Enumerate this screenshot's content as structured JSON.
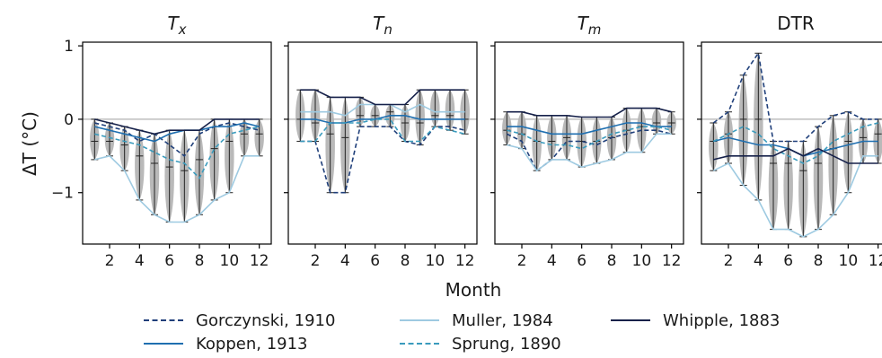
{
  "figure": {
    "xlabel": "Month",
    "ylabel": "ΔT (°C)"
  },
  "legend": [
    {
      "label": "Gorczynski, 1910",
      "color": "#1f3f7a",
      "style": "dashed"
    },
    {
      "label": "Koppen, 1913",
      "color": "#1f6fb0",
      "style": "solid"
    },
    {
      "label": "Muller, 1984",
      "color": "#9ecae1",
      "style": "solid"
    },
    {
      "label": "Sprung, 1890",
      "color": "#3a9bbd",
      "style": "dashed"
    },
    {
      "label": "Whipple, 1883",
      "color": "#16214a",
      "style": "solid"
    }
  ],
  "colors": {
    "violin": "#b5b5b5",
    "zero_line": "#b0b0b0",
    "axis": "#000000"
  },
  "chart_data": [
    {
      "type": "line",
      "title_main": "T",
      "title_sub": "x",
      "x": [
        1,
        2,
        3,
        4,
        5,
        6,
        7,
        8,
        9,
        10,
        11,
        12
      ],
      "xticks": [
        2,
        4,
        6,
        8,
        10,
        12
      ],
      "ylim": [
        -1.7,
        1.05
      ],
      "yticks": [
        1,
        0,
        -1
      ],
      "series": [
        {
          "name": "Gorczynski, 1910",
          "values": [
            -0.05,
            -0.1,
            -0.15,
            -0.3,
            -0.2,
            -0.35,
            -0.5,
            -0.2,
            -0.1,
            -0.05,
            -0.1,
            -0.15
          ]
        },
        {
          "name": "Koppen, 1913",
          "values": [
            -0.1,
            -0.15,
            -0.2,
            -0.25,
            -0.3,
            -0.2,
            -0.15,
            -0.15,
            -0.1,
            -0.1,
            -0.05,
            -0.1
          ]
        },
        {
          "name": "Muller, 1984",
          "values": [
            -0.55,
            -0.5,
            -0.7,
            -1.1,
            -1.3,
            -1.4,
            -1.4,
            -1.3,
            -1.1,
            -1.0,
            -0.5,
            -0.5
          ]
        },
        {
          "name": "Sprung, 1890",
          "values": [
            -0.2,
            -0.25,
            -0.3,
            -0.35,
            -0.45,
            -0.55,
            -0.6,
            -0.8,
            -0.4,
            -0.2,
            -0.15,
            -0.1
          ]
        },
        {
          "name": "Whipple, 1883",
          "values": [
            0.0,
            -0.05,
            -0.1,
            -0.15,
            -0.2,
            -0.15,
            -0.15,
            -0.15,
            0.0,
            0.0,
            0.0,
            0.0
          ]
        }
      ],
      "violin_medians": [
        -0.3,
        -0.3,
        -0.35,
        -0.5,
        -0.6,
        -0.65,
        -0.7,
        -0.55,
        -0.4,
        -0.3,
        -0.2,
        -0.2
      ]
    },
    {
      "type": "line",
      "title_main": "T",
      "title_sub": "n",
      "x": [
        1,
        2,
        3,
        4,
        5,
        6,
        7,
        8,
        9,
        10,
        11,
        12
      ],
      "xticks": [
        2,
        4,
        6,
        8,
        10,
        12
      ],
      "ylim": [
        -1.7,
        1.05
      ],
      "yticks": [
        1,
        0,
        -1
      ],
      "series": [
        {
          "name": "Gorczynski, 1910",
          "values": [
            -0.3,
            -0.3,
            -1.0,
            -1.0,
            -0.1,
            -0.1,
            -0.1,
            -0.3,
            -0.35,
            -0.1,
            -0.1,
            -0.15
          ]
        },
        {
          "name": "Koppen, 1913",
          "values": [
            0.0,
            0.0,
            -0.05,
            -0.05,
            0.0,
            0.0,
            0.05,
            0.05,
            0.0,
            0.0,
            0.0,
            0.0
          ]
        },
        {
          "name": "Muller, 1984",
          "values": [
            0.1,
            0.1,
            0.1,
            0.05,
            0.2,
            0.2,
            0.2,
            0.1,
            0.2,
            0.1,
            0.1,
            0.1
          ]
        },
        {
          "name": "Sprung, 1890",
          "values": [
            -0.3,
            -0.3,
            -0.05,
            -0.05,
            -0.05,
            0.0,
            0.0,
            -0.3,
            -0.3,
            -0.1,
            -0.15,
            -0.2
          ]
        },
        {
          "name": "Whipple, 1883",
          "values": [
            0.4,
            0.4,
            0.3,
            0.3,
            0.3,
            0.2,
            0.2,
            0.2,
            0.4,
            0.4,
            0.4,
            0.4
          ]
        }
      ],
      "violin_medians": [
        0.0,
        -0.05,
        -0.2,
        -0.25,
        0.05,
        0.05,
        0.1,
        -0.05,
        -0.05,
        0.05,
        0.05,
        0.0
      ]
    },
    {
      "type": "line",
      "title_main": "T",
      "title_sub": "m",
      "x": [
        1,
        2,
        3,
        4,
        5,
        6,
        7,
        8,
        9,
        10,
        11,
        12
      ],
      "xticks": [
        2,
        4,
        6,
        8,
        10,
        12
      ],
      "ylim": [
        -1.7,
        1.05
      ],
      "yticks": [
        1,
        0,
        -1
      ],
      "series": [
        {
          "name": "Gorczynski, 1910",
          "values": [
            -0.2,
            -0.3,
            -0.7,
            -0.55,
            -0.3,
            -0.3,
            -0.35,
            -0.25,
            -0.2,
            -0.15,
            -0.15,
            -0.2
          ]
        },
        {
          "name": "Koppen, 1913",
          "values": [
            -0.1,
            -0.1,
            -0.15,
            -0.2,
            -0.2,
            -0.2,
            -0.15,
            -0.1,
            -0.05,
            -0.05,
            -0.1,
            -0.1
          ]
        },
        {
          "name": "Muller, 1984",
          "values": [
            -0.35,
            -0.4,
            -0.7,
            -0.55,
            -0.55,
            -0.65,
            -0.6,
            -0.55,
            -0.45,
            -0.45,
            -0.2,
            -0.2
          ]
        },
        {
          "name": "Sprung, 1890",
          "values": [
            -0.15,
            -0.2,
            -0.3,
            -0.35,
            -0.35,
            -0.4,
            -0.3,
            -0.2,
            -0.15,
            -0.1,
            -0.1,
            -0.15
          ]
        },
        {
          "name": "Whipple, 1883",
          "values": [
            0.1,
            0.1,
            0.05,
            0.05,
            0.05,
            0.03,
            0.03,
            0.03,
            0.15,
            0.15,
            0.15,
            0.1
          ]
        }
      ],
      "violin_medians": [
        -0.15,
        -0.2,
        -0.3,
        -0.3,
        -0.25,
        -0.3,
        -0.3,
        -0.25,
        -0.15,
        -0.1,
        -0.05,
        -0.05
      ]
    },
    {
      "type": "line",
      "title_main": "DTR",
      "title_sub": "",
      "x": [
        1,
        2,
        3,
        4,
        5,
        6,
        7,
        8,
        9,
        10,
        11,
        12
      ],
      "xticks": [
        2,
        4,
        6,
        8,
        10,
        12
      ],
      "ylim": [
        -1.7,
        1.05
      ],
      "yticks": [
        1,
        0,
        -1
      ],
      "series": [
        {
          "name": "Gorczynski, 1910",
          "values": [
            -0.05,
            0.1,
            0.6,
            0.9,
            -0.3,
            -0.3,
            -0.3,
            -0.1,
            0.05,
            0.1,
            0.0,
            0.0
          ]
        },
        {
          "name": "Koppen, 1913",
          "values": [
            -0.3,
            -0.25,
            -0.3,
            -0.35,
            -0.35,
            -0.4,
            -0.5,
            -0.45,
            -0.4,
            -0.35,
            -0.3,
            -0.3
          ]
        },
        {
          "name": "Muller, 1984",
          "values": [
            -0.7,
            -0.6,
            -0.9,
            -1.1,
            -1.5,
            -1.5,
            -1.6,
            -1.5,
            -1.3,
            -1.0,
            -0.5,
            -0.5
          ]
        },
        {
          "name": "Sprung, 1890",
          "values": [
            -0.3,
            -0.2,
            -0.1,
            -0.2,
            -0.4,
            -0.5,
            -0.6,
            -0.5,
            -0.3,
            -0.2,
            -0.1,
            -0.05
          ]
        },
        {
          "name": "Whipple, 1883",
          "values": [
            -0.55,
            -0.5,
            -0.5,
            -0.5,
            -0.5,
            -0.4,
            -0.5,
            -0.4,
            -0.5,
            -0.6,
            -0.6,
            -0.6
          ]
        }
      ],
      "violin_medians": [
        -0.3,
        -0.2,
        0.0,
        0.0,
        -0.6,
        -0.6,
        -0.7,
        -0.6,
        -0.4,
        -0.3,
        -0.25,
        -0.2
      ]
    }
  ]
}
